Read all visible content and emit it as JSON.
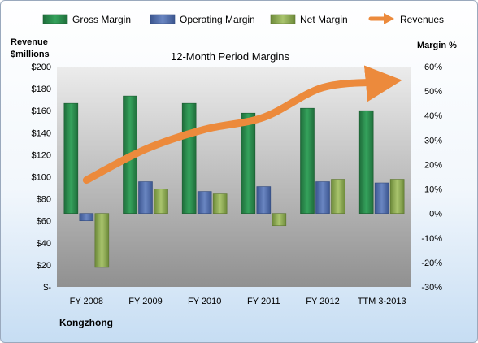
{
  "chart_data": {
    "type": "bar",
    "title": "12-Month Period Margins",
    "categories": [
      "FY 2008",
      "FY 2009",
      "FY 2010",
      "FY 2011",
      "FY 2012",
      "TTM 3-2013"
    ],
    "left_axis": {
      "label_line1": "Revenue",
      "label_line2": "$millions",
      "ylim": [
        0,
        200
      ],
      "ticks": [
        "$-",
        "$20",
        "$40",
        "$60",
        "$80",
        "$100",
        "$120",
        "$140",
        "$160",
        "$180",
        "$200"
      ]
    },
    "right_axis": {
      "label": "Margin %",
      "ylim": [
        -30,
        60
      ],
      "ticks": [
        "-30%",
        "-20%",
        "-10%",
        "0%",
        "10%",
        "20%",
        "30%",
        "40%",
        "50%",
        "60%"
      ]
    },
    "series": [
      {
        "name": "Gross Margin",
        "type": "bar",
        "axis": "right",
        "color": "#2e8b4f",
        "values": [
          45,
          48,
          45,
          41,
          43,
          42
        ]
      },
      {
        "name": "Operating Margin",
        "type": "bar",
        "axis": "right",
        "color": "#4f6ca8",
        "values": [
          -3,
          13,
          9,
          11,
          13,
          12.5
        ]
      },
      {
        "name": "Net Margin",
        "type": "bar",
        "axis": "right",
        "color": "#8aa553",
        "values": [
          -22,
          10,
          8,
          -5,
          14,
          14
        ]
      },
      {
        "name": "Revenues",
        "type": "line",
        "axis": "left",
        "color": "#ec8a3c",
        "values": [
          97,
          125,
          143,
          154,
          181,
          186
        ]
      }
    ],
    "legend_position": "top",
    "grid": false
  },
  "company": "Kongzhong"
}
